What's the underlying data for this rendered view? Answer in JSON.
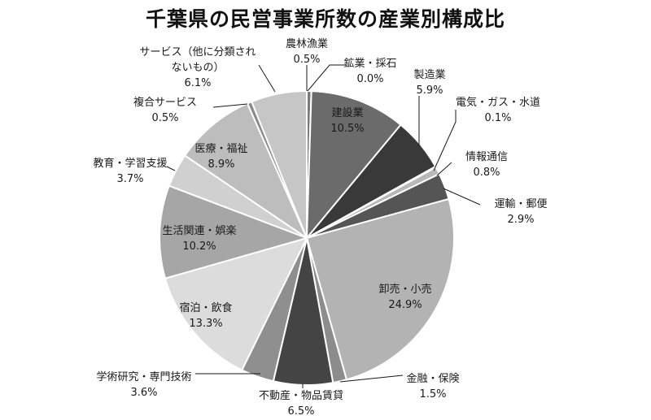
{
  "chart_data": {
    "type": "pie",
    "title": "千葉県の民営事業所数の産業別構成比",
    "unit": "%",
    "slices": [
      {
        "name": "農林漁業",
        "label_lines": [
          "農林漁業"
        ],
        "value": 0.5,
        "value_text": "0.5%",
        "color": "#7a7a7a"
      },
      {
        "name": "鉱業・採石",
        "label_lines": [
          "鉱業・採石"
        ],
        "value": 0.0,
        "value_text": "0.0%",
        "color": "#6a6a6a"
      },
      {
        "name": "建設業",
        "label_lines": [
          "建設業"
        ],
        "value": 10.5,
        "value_text": "10.5%",
        "color": "#6b6b6b"
      },
      {
        "name": "製造業",
        "label_lines": [
          "製造業"
        ],
        "value": 5.9,
        "value_text": "5.9%",
        "color": "#393939"
      },
      {
        "name": "電気・ガス・水道",
        "label_lines": [
          "電気・ガス・水道"
        ],
        "value": 0.1,
        "value_text": "0.1%",
        "color": "#8a8a8a"
      },
      {
        "name": "情報通信",
        "label_lines": [
          "情報通信"
        ],
        "value": 0.8,
        "value_text": "0.8%",
        "color": "#b8b8b8"
      },
      {
        "name": "運輸・郵便",
        "label_lines": [
          "運輸・郵便"
        ],
        "value": 2.9,
        "value_text": "2.9%",
        "color": "#555555"
      },
      {
        "name": "卸売・小売",
        "label_lines": [
          "卸売・小売"
        ],
        "value": 24.9,
        "value_text": "24.9%",
        "color": "#b3b3b3"
      },
      {
        "name": "金融・保険",
        "label_lines": [
          "金融・保険"
        ],
        "value": 1.5,
        "value_text": "1.5%",
        "color": "#8c8c8c"
      },
      {
        "name": "不動産・物品賃貸",
        "label_lines": [
          "不動産・物品賃貸"
        ],
        "value": 6.5,
        "value_text": "6.5%",
        "color": "#444444"
      },
      {
        "name": "学術研究・専門技術",
        "label_lines": [
          "学術研究・専門技術"
        ],
        "value": 3.6,
        "value_text": "3.6%",
        "color": "#8f8f8f"
      },
      {
        "name": "宿泊・飲食",
        "label_lines": [
          "宿泊・飲食"
        ],
        "value": 13.3,
        "value_text": "13.3%",
        "color": "#dcdcdc"
      },
      {
        "name": "生活関連・娯楽",
        "label_lines": [
          "生活関連・娯楽"
        ],
        "value": 10.2,
        "value_text": "10.2%",
        "color": "#a6a6a6"
      },
      {
        "name": "教育・学習支援",
        "label_lines": [
          "教育・学習支援"
        ],
        "value": 3.7,
        "value_text": "3.7%",
        "color": "#d0d0d0"
      },
      {
        "name": "医療・福祉",
        "label_lines": [
          "医療・福祉"
        ],
        "value": 8.9,
        "value_text": "8.9%",
        "color": "#bdbdbd"
      },
      {
        "name": "複合サービス",
        "label_lines": [
          "複合サービス"
        ],
        "value": 0.5,
        "value_text": "0.5%",
        "color": "#8a8a8a"
      },
      {
        "name": "サービス（他に分類されないもの）",
        "label_lines": [
          "サービス（他に分類され",
          "ないもの）"
        ],
        "value": 6.1,
        "value_text": "6.1%",
        "color": "#c6c6c6"
      }
    ]
  }
}
